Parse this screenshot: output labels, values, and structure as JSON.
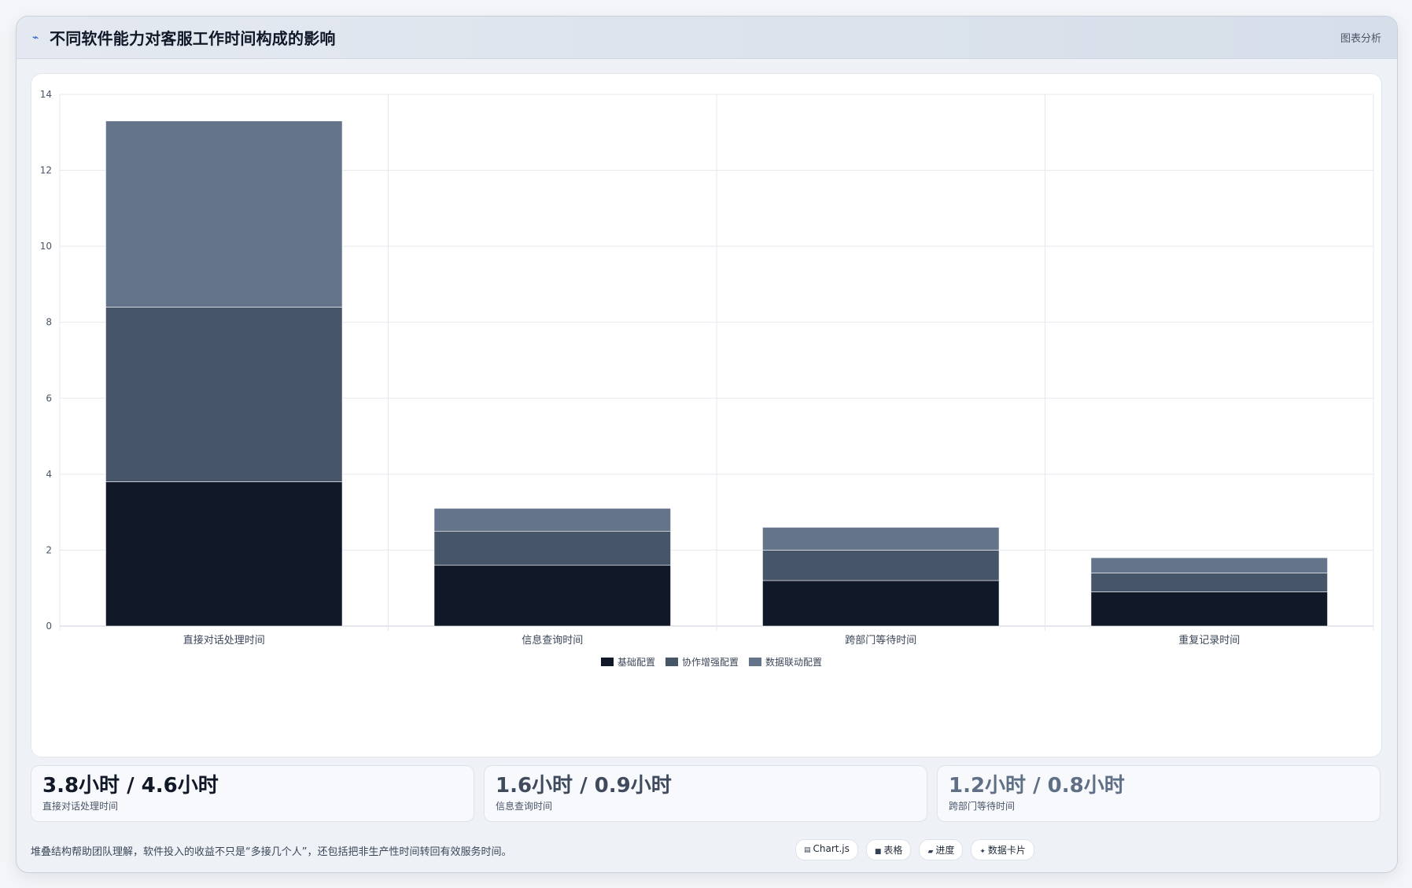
{
  "header": {
    "icon": "trend-line-icon",
    "icon_glyph": "⌁",
    "title": "不同软件能力对客服工作时间构成的影响",
    "action_label": "图表分析"
  },
  "chart_data": {
    "type": "bar",
    "stacked": true,
    "categories": [
      "直接对话处理时间",
      "信息查询时间",
      "跨部门等待时间",
      "重复记录时间"
    ],
    "series": [
      {
        "name": "基础配置",
        "values": [
          3.8,
          1.6,
          1.2,
          0.9
        ],
        "color": "#111827"
      },
      {
        "name": "协作增强配置",
        "values": [
          4.6,
          0.9,
          0.8,
          0.5
        ],
        "color": "#475569"
      },
      {
        "name": "数据联动配置",
        "values": [
          4.9,
          0.6,
          0.6,
          0.4
        ],
        "color": "#64748b"
      }
    ],
    "ylim": [
      0,
      14
    ],
    "yticks": [
      0,
      2,
      4,
      6,
      8,
      10,
      12,
      14
    ],
    "grid": true,
    "legend_position": "bottom",
    "title": "",
    "xlabel": "",
    "ylabel": ""
  },
  "stats": [
    {
      "value": "3.8小时 / 4.6小时",
      "label": "直接对话处理时间",
      "color": "#111827"
    },
    {
      "value": "1.6小时 / 0.9小时",
      "label": "信息查询时间",
      "color": "#3f4a5c"
    },
    {
      "value": "1.2小时 / 0.8小时",
      "label": "跨部门等待时间",
      "color": "#5f6f86"
    }
  ],
  "footer": {
    "note": "堆叠结构帮助团队理解，软件投入的收益不只是“多接几个人”，还包括把非生产性时间转回有效服务时间。",
    "chips": [
      {
        "icon": "chart-icon",
        "glyph": "▤",
        "label": "Chart.js"
      },
      {
        "icon": "table-icon",
        "glyph": "■",
        "label": "表格"
      },
      {
        "icon": "progress-icon",
        "glyph": "▰",
        "label": "进度"
      },
      {
        "icon": "card-icon",
        "glyph": "✦",
        "label": "数据卡片"
      }
    ]
  }
}
